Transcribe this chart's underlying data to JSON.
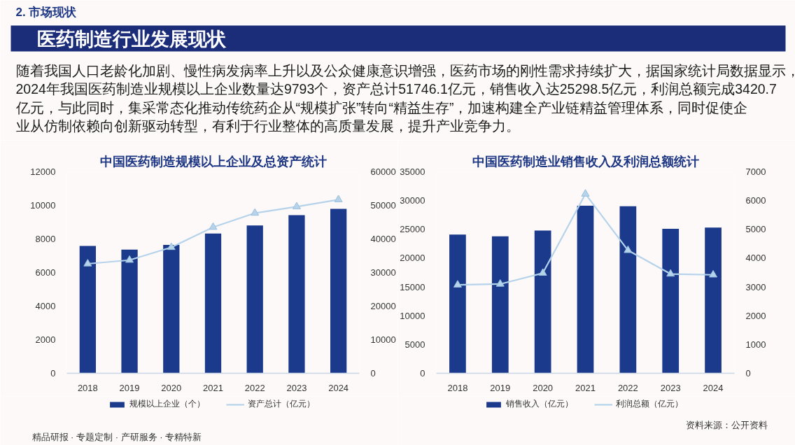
{
  "chart_data": [
    {
      "type": "other",
      "title": "医药制造行业发展现状",
      "annotations": [
        "2. 市场现状",
        "随着我国人口老龄化加剧、慢性病发病率上升以及公众健康意识增强，医药市场的刚性需求持续扩大，据国家统计局数据显示，2024年我国医药制造业规模以上企业数量达9793个，资产总计51746.1亿元，销售收入达25298.5亿元，利润总额完成3420.7亿元，与此同时，集采常态化推动传统药企从“规模扩张”转向“精益生存”，加速构建全产业链精益管理体系，同时促使企业从仿制依赖向创新驱动转型，有利于行业整体的高质量发展，提升产业竞争力。"
      ]
    },
    {
      "type": "bar",
      "title": "中国医药制造规模以上企业及总资产统计",
      "categories": [
        "2018",
        "2019",
        "2020",
        "2021",
        "2022",
        "2023",
        "2024"
      ],
      "series": [
        {
          "name": "规模以上企业（个）",
          "color": "#1b3a8c",
          "values": [
            7580,
            7360,
            7650,
            8320,
            8800,
            9420,
            9790
          ]
        },
        {
          "name": "资产总计（亿元）",
          "type": "line",
          "axis": "y2",
          "color": "#b5d3ea",
          "values": [
            32600,
            33700,
            37500,
            43500,
            47700,
            49600,
            51700
          ]
        }
      ],
      "ylim": [
        0,
        12000
      ],
      "yticks": [
        0,
        2000,
        4000,
        6000,
        8000,
        10000,
        12000
      ],
      "y2lim": [
        0,
        60000
      ],
      "y2ticks": [
        0,
        10000,
        20000,
        30000,
        40000,
        50000,
        60000
      ],
      "grid": false,
      "legend": "bottom",
      "marker": "triangle",
      "annotations": [
        "精品研报 · 专题定制 · 产研服务 · 专精特新"
      ]
    },
    {
      "type": "bar",
      "title": "中国医药制造业销售收入及利润总额统计",
      "categories": [
        "2018",
        "2019",
        "2020",
        "2021",
        "2022",
        "2023",
        "2024"
      ],
      "series": [
        {
          "name": "销售收入（亿元）",
          "color": "#1b3a8c",
          "values": [
            24100,
            23800,
            24800,
            29100,
            29000,
            25100,
            25300
          ]
        },
        {
          "name": "利润总额（亿元）",
          "type": "line",
          "axis": "y2",
          "color": "#b5d3ea",
          "values": [
            3070,
            3100,
            3480,
            6230,
            4270,
            3450,
            3420
          ]
        }
      ],
      "ylim": [
        0,
        35000
      ],
      "yticks": [
        0,
        5000,
        10000,
        15000,
        20000,
        25000,
        30000,
        35000
      ],
      "y2lim": [
        0,
        7000
      ],
      "y2ticks": [
        0,
        1000,
        2000,
        3000,
        4000,
        5000,
        6000,
        7000
      ],
      "grid": false,
      "legend": "bottom",
      "marker": "triangle",
      "annotations": [
        "资料来源：公开资料"
      ]
    }
  ]
}
